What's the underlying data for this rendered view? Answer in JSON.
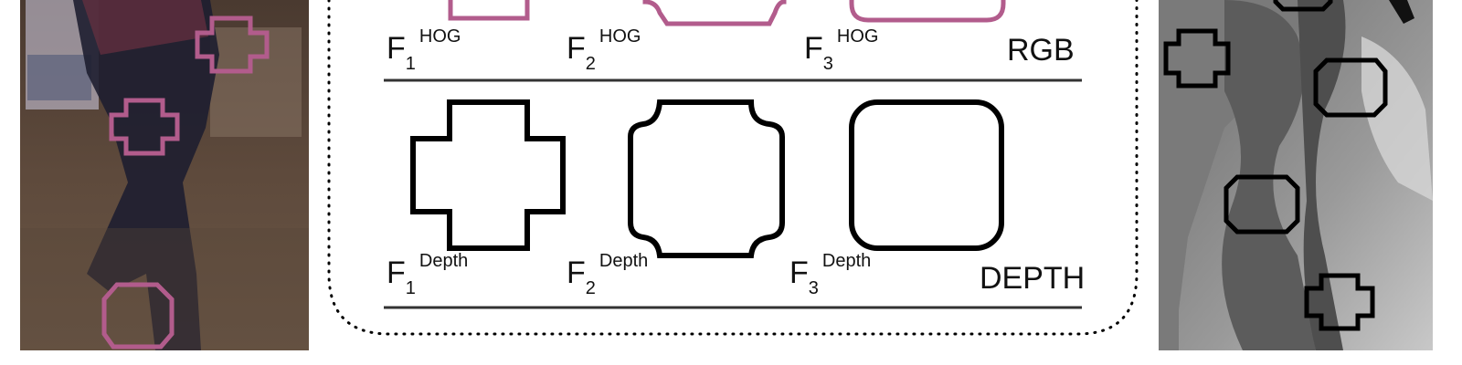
{
  "panels": {
    "left": {
      "content": "rgb-photo"
    },
    "right": {
      "content": "depth-map"
    }
  },
  "rgb_row": {
    "section_label": "RGB",
    "filters": [
      {
        "base": "F",
        "sub": "1",
        "sup": "HOG",
        "shape": "cross"
      },
      {
        "base": "F",
        "sub": "2",
        "sup": "HOG",
        "shape": "notched-square"
      },
      {
        "base": "F",
        "sub": "3",
        "sup": "HOG",
        "shape": "rounded-square"
      }
    ]
  },
  "depth_row": {
    "section_label": "DEPTH",
    "filters": [
      {
        "base": "F",
        "sub": "1",
        "sup": "Depth",
        "shape": "cross"
      },
      {
        "base": "F",
        "sub": "2",
        "sup": "Depth",
        "shape": "notched-square"
      },
      {
        "base": "F",
        "sub": "3",
        "sup": "Depth",
        "shape": "rounded-square"
      }
    ]
  },
  "colors": {
    "rgb_filter": "#b25c8c",
    "depth_filter": "#000000"
  }
}
